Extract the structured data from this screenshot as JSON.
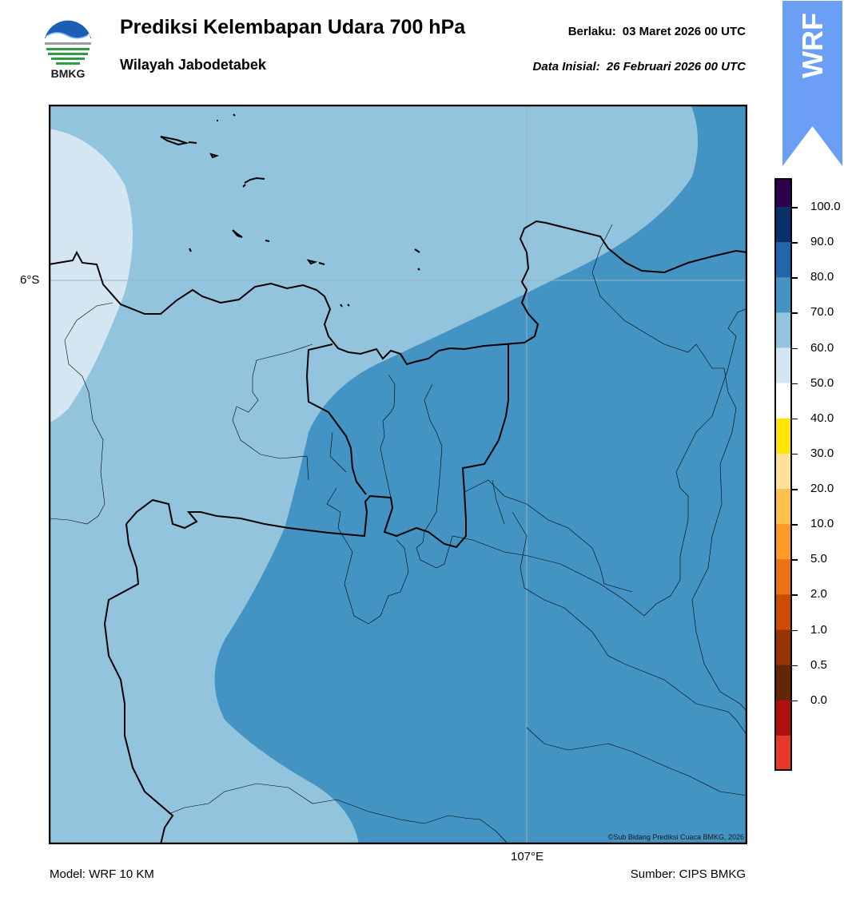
{
  "header": {
    "title": "Prediksi Kelembapan Udara 700 hPa",
    "region": "Wilayah Jabodetabek",
    "valid_label": "Berlaku:",
    "valid_time": "03 Maret 2026 00 UTC",
    "init_label": "Data Inisial:",
    "init_time": "26 Februari 2026 00 UTC"
  },
  "logo": {
    "text": "BMKG",
    "icon": "bmkg-logo"
  },
  "ribbon": {
    "text": "WRF",
    "color": "#6b9ef5"
  },
  "map": {
    "lat_label": "6°S",
    "lon_label": "107°E",
    "copyright": "©Sub Bidang Prediksi Cuaca BMKG, 2026",
    "fill_colors": {
      "50-60": "#d4e6f1",
      "60-70": "#93c4de",
      "70-80": "#4393c3"
    }
  },
  "footer": {
    "model": "Model: WRF 10 KM",
    "source": "Sumber: CIPS BMKG"
  },
  "colorbar": {
    "labels": [
      "100.0",
      "90.0",
      "80.0",
      "70.0",
      "60.0",
      "50.0",
      "40.0",
      "30.0",
      "20.0",
      "10.0",
      "5.0",
      "2.0",
      "1.0",
      "0.5",
      "0.0"
    ],
    "colors": [
      "#2d004b",
      "#08306b",
      "#2166ac",
      "#4393c3",
      "#93c4de",
      "#d4e6f1",
      "#ffffff",
      "#ffe500",
      "#ffe29a",
      "#ffc04c",
      "#fb9a29",
      "#ec7014",
      "#cc4c02",
      "#993404",
      "#662506",
      "#b01010",
      "#e8382a"
    ]
  }
}
